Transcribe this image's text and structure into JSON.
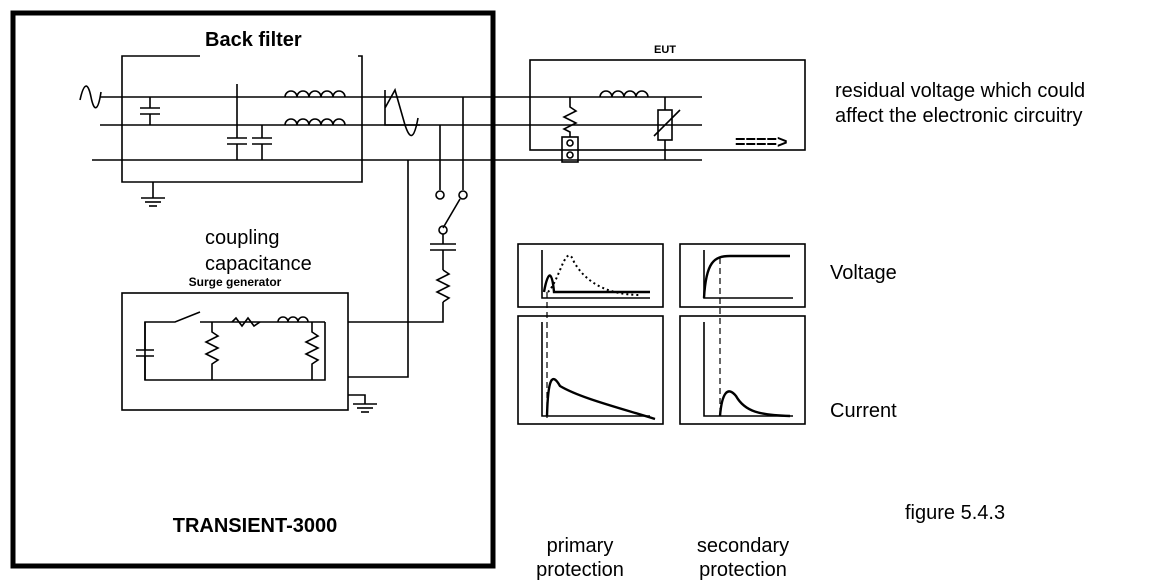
{
  "back_filter": "Back filter",
  "eut": {
    "title": "EUT",
    "arrow": "====>"
  },
  "note": [
    "residual voltage which could",
    "affect the electronic circuitry"
  ],
  "coupling": [
    "coupling",
    "capacitance"
  ],
  "surge_generator": "Surge generator",
  "waveforms": {
    "voltage": "Voltage",
    "current": "Current"
  },
  "device": "TRANSIENT-3000",
  "columns": [
    [
      "primary",
      "protection"
    ],
    [
      "secondary",
      "protection"
    ]
  ],
  "caption": "figure 5.4.3"
}
